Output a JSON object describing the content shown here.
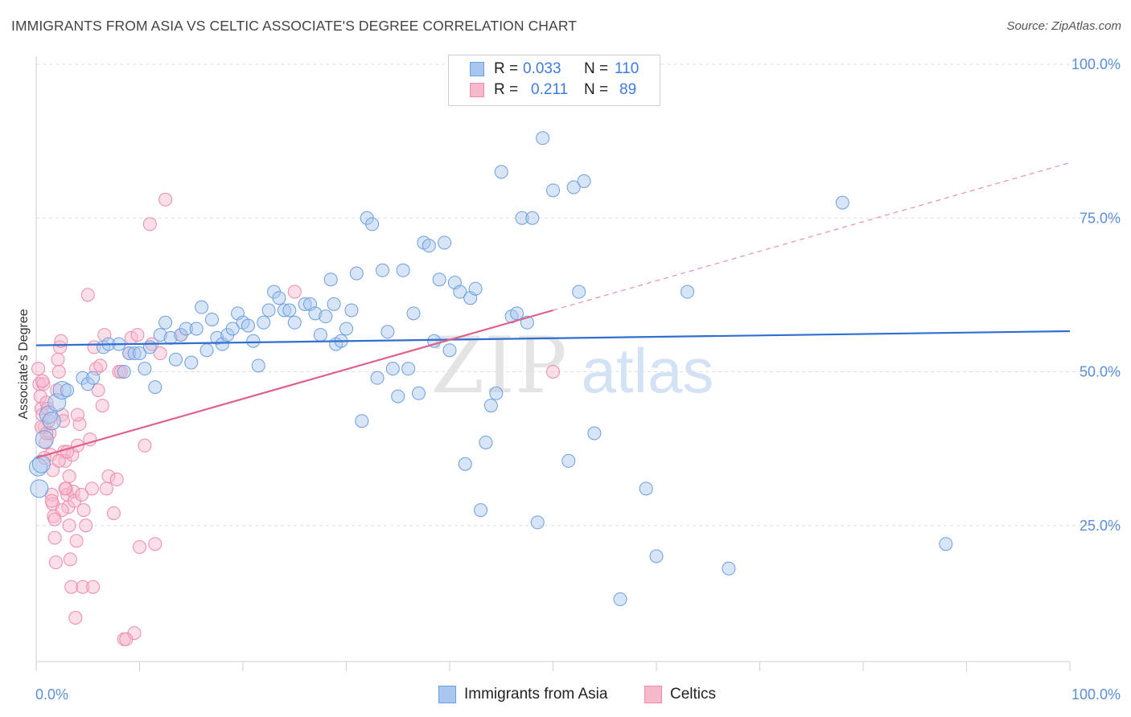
{
  "title": "IMMIGRANTS FROM ASIA VS CELTIC ASSOCIATE'S DEGREE CORRELATION CHART",
  "source": "Source: ZipAtlas.com",
  "legend": {
    "row1": {
      "r_label": "R =",
      "r_value": "0.033",
      "n_label": "N =",
      "n_value": "110"
    },
    "row2": {
      "r_label": "R =",
      "r_value": "0.211",
      "n_label": "N =",
      "n_value": "89"
    }
  },
  "bottom_legend": {
    "series1": "Immigrants from Asia",
    "series2": "Celtics"
  },
  "watermark": {
    "zip": "ZIP",
    "atlas": "atlas"
  },
  "colors": {
    "asia_fill": "#a9c6ee",
    "asia_stroke": "#6a9fe0",
    "asia_line": "#2f6fd0",
    "celtic_fill": "#f6b8cb",
    "celtic_stroke": "#ee8aaa",
    "celtic_line": "#e0608a",
    "tick_text": "#5b8fd6",
    "grid": "#dddddd"
  },
  "chart_data": {
    "type": "scatter",
    "title": "IMMIGRANTS FROM ASIA VS CELTIC ASSOCIATE'S DEGREE CORRELATION CHART",
    "xlabel": "",
    "ylabel": "Associate's Degree",
    "xlim": [
      0,
      100
    ],
    "ylim": [
      0,
      105
    ],
    "x_tick_labels": [
      "0.0%",
      "100.0%"
    ],
    "y_tick_labels": [
      "25.0%",
      "50.0%",
      "75.0%",
      "100.0%"
    ],
    "y_ticks": [
      25,
      50,
      75,
      100
    ],
    "grid": true,
    "series": [
      {
        "name": "Immigrants from Asia",
        "r": 0.033,
        "n": 110,
        "trend": {
          "x": [
            0,
            100
          ],
          "y": [
            54.3,
            56.6
          ]
        },
        "points": [
          [
            0.2,
            34.5
          ],
          [
            0.3,
            31
          ],
          [
            0.5,
            35
          ],
          [
            0.8,
            39
          ],
          [
            1.2,
            43
          ],
          [
            1.5,
            42
          ],
          [
            2,
            45
          ],
          [
            2.5,
            47
          ],
          [
            3,
            47
          ],
          [
            4.5,
            49
          ],
          [
            5,
            48
          ],
          [
            5.5,
            49
          ],
          [
            6.5,
            54
          ],
          [
            7,
            54.5
          ],
          [
            8,
            54.5
          ],
          [
            8.5,
            50
          ],
          [
            9,
            53
          ],
          [
            9.5,
            53
          ],
          [
            10,
            53
          ],
          [
            10.5,
            50.5
          ],
          [
            11,
            54
          ],
          [
            11.5,
            47.5
          ],
          [
            12,
            56
          ],
          [
            12.5,
            58
          ],
          [
            13,
            55.5
          ],
          [
            13.5,
            52
          ],
          [
            14,
            56
          ],
          [
            14.5,
            57
          ],
          [
            15,
            51.5
          ],
          [
            15.5,
            57
          ],
          [
            16,
            60.5
          ],
          [
            16.5,
            53.5
          ],
          [
            17,
            58.5
          ],
          [
            17.5,
            55.5
          ],
          [
            18,
            54.5
          ],
          [
            18.5,
            56
          ],
          [
            19,
            57
          ],
          [
            19.5,
            59.5
          ],
          [
            20,
            58
          ],
          [
            20.5,
            57.5
          ],
          [
            21,
            55
          ],
          [
            21.5,
            51
          ],
          [
            22,
            58
          ],
          [
            22.5,
            60
          ],
          [
            23,
            63
          ],
          [
            23.5,
            62
          ],
          [
            24,
            60
          ],
          [
            24.5,
            60
          ],
          [
            25,
            58
          ],
          [
            26,
            61
          ],
          [
            26.5,
            61
          ],
          [
            27,
            59.5
          ],
          [
            27.5,
            56
          ],
          [
            28,
            59
          ],
          [
            28.5,
            65
          ],
          [
            28.8,
            61
          ],
          [
            29,
            54.5
          ],
          [
            29.5,
            55
          ],
          [
            30,
            57
          ],
          [
            30.5,
            60
          ],
          [
            31,
            66
          ],
          [
            31.5,
            42
          ],
          [
            32,
            75
          ],
          [
            32.5,
            74
          ],
          [
            33,
            49
          ],
          [
            33.5,
            66.5
          ],
          [
            34,
            56.5
          ],
          [
            34.5,
            50.5
          ],
          [
            35,
            46
          ],
          [
            35.5,
            66.5
          ],
          [
            36,
            50.5
          ],
          [
            36.5,
            59.5
          ],
          [
            37,
            46.5
          ],
          [
            37.5,
            71
          ],
          [
            38,
            70.5
          ],
          [
            38.5,
            55
          ],
          [
            39,
            65
          ],
          [
            39.5,
            71
          ],
          [
            40,
            53.5
          ],
          [
            40.5,
            64.5
          ],
          [
            41,
            63
          ],
          [
            41.5,
            35
          ],
          [
            42,
            62
          ],
          [
            42.5,
            63.5
          ],
          [
            43,
            27.5
          ],
          [
            43.5,
            38.5
          ],
          [
            44,
            44.5
          ],
          [
            44.5,
            46.5
          ],
          [
            45,
            82.5
          ],
          [
            46,
            59
          ],
          [
            46.5,
            59.5
          ],
          [
            47,
            75
          ],
          [
            47.5,
            58
          ],
          [
            48,
            75
          ],
          [
            48.5,
            25.5
          ],
          [
            49,
            88
          ],
          [
            50,
            79.5
          ],
          [
            51.5,
            35.5
          ],
          [
            52,
            80
          ],
          [
            52.5,
            63
          ],
          [
            53,
            81
          ],
          [
            54,
            40
          ],
          [
            59,
            31
          ],
          [
            60,
            20
          ],
          [
            63,
            63
          ],
          [
            67,
            18
          ],
          [
            78,
            77.5
          ],
          [
            88,
            22
          ],
          [
            56.5,
            13
          ]
        ]
      },
      {
        "name": "Celtics",
        "r": 0.211,
        "n": 89,
        "trend": {
          "x": [
            0,
            50
          ],
          "y": [
            36,
            60
          ]
        },
        "trend_extension": {
          "x": [
            50,
            100
          ],
          "y": [
            60,
            84
          ]
        },
        "points": [
          [
            0.2,
            50.5
          ],
          [
            0.3,
            48
          ],
          [
            0.4,
            46
          ],
          [
            0.5,
            44
          ],
          [
            0.6,
            43
          ],
          [
            0.7,
            48
          ],
          [
            0.8,
            41
          ],
          [
            0.9,
            38.5
          ],
          [
            1,
            45
          ],
          [
            1.1,
            44
          ],
          [
            1.2,
            42
          ],
          [
            1.3,
            40
          ],
          [
            1.4,
            36.5
          ],
          [
            1.5,
            30
          ],
          [
            1.6,
            28.5
          ],
          [
            1.7,
            26.5
          ],
          [
            1.8,
            23
          ],
          [
            1.9,
            19
          ],
          [
            2,
            47
          ],
          [
            2.1,
            52
          ],
          [
            2.2,
            50
          ],
          [
            2.3,
            54
          ],
          [
            2.4,
            55
          ],
          [
            2.5,
            43
          ],
          [
            2.6,
            42
          ],
          [
            2.7,
            37
          ],
          [
            2.8,
            35.5
          ],
          [
            2.9,
            31
          ],
          [
            3,
            30
          ],
          [
            3.1,
            28
          ],
          [
            3.2,
            25
          ],
          [
            3.3,
            19.5
          ],
          [
            3.4,
            15
          ],
          [
            3.5,
            36.5
          ],
          [
            3.6,
            30.5
          ],
          [
            3.7,
            29
          ],
          [
            3.8,
            10
          ],
          [
            3.9,
            22.5
          ],
          [
            4,
            38
          ],
          [
            4.2,
            41.5
          ],
          [
            4.4,
            30
          ],
          [
            4.5,
            15
          ],
          [
            4.6,
            27.5
          ],
          [
            4.8,
            25
          ],
          [
            5,
            62.5
          ],
          [
            5.2,
            39
          ],
          [
            5.4,
            31
          ],
          [
            5.5,
            15
          ],
          [
            5.6,
            54
          ],
          [
            5.8,
            50.5
          ],
          [
            6,
            47
          ],
          [
            6.2,
            51
          ],
          [
            6.4,
            44.5
          ],
          [
            6.6,
            56
          ],
          [
            6.8,
            31
          ],
          [
            7,
            33
          ],
          [
            7.5,
            27
          ],
          [
            7.8,
            32.5
          ],
          [
            8,
            50
          ],
          [
            8.2,
            50
          ],
          [
            8.5,
            6.5
          ],
          [
            9,
            53
          ],
          [
            9.2,
            55.5
          ],
          [
            9.5,
            7.5
          ],
          [
            9.8,
            56
          ],
          [
            10,
            21.5
          ],
          [
            10.5,
            38
          ],
          [
            11,
            74
          ],
          [
            11.2,
            54.5
          ],
          [
            11.5,
            22
          ],
          [
            12,
            53
          ],
          [
            12.5,
            78
          ],
          [
            14,
            56
          ],
          [
            25,
            63
          ],
          [
            50,
            50
          ],
          [
            0.5,
            41
          ],
          [
            1,
            40
          ],
          [
            0.8,
            36
          ],
          [
            1.6,
            34
          ],
          [
            2.2,
            35.5
          ],
          [
            3,
            37
          ],
          [
            2.8,
            31
          ],
          [
            1.5,
            29
          ],
          [
            4,
            43
          ],
          [
            3.2,
            33
          ],
          [
            2.5,
            27.5
          ],
          [
            1.8,
            26
          ],
          [
            0.6,
            48.5
          ],
          [
            8.7,
            6.5
          ]
        ]
      }
    ]
  }
}
